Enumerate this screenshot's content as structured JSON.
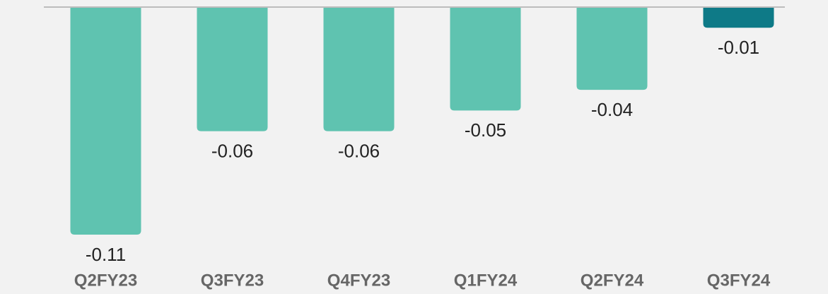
{
  "chart_data": {
    "type": "bar",
    "categories": [
      "Q2FY23",
      "Q3FY23",
      "Q4FY23",
      "Q1FY24",
      "Q2FY24",
      "Q3FY24"
    ],
    "values": [
      -0.11,
      -0.06,
      -0.06,
      -0.05,
      -0.04,
      -0.01
    ],
    "colors": [
      "#5fc3b0",
      "#5fc3b0",
      "#5fc3b0",
      "#5fc3b0",
      "#5fc3b0",
      "#0e7a87"
    ],
    "ylim": [
      -0.11,
      0
    ]
  }
}
